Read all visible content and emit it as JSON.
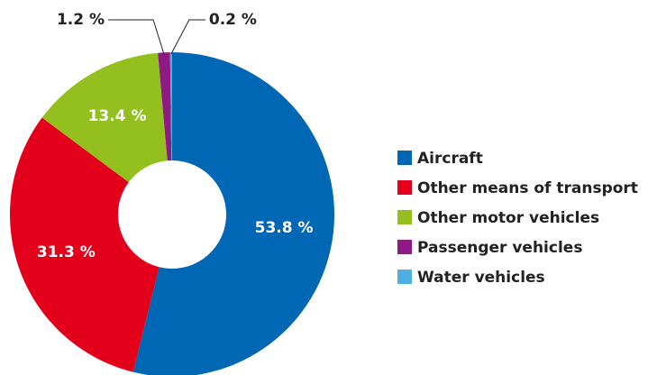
{
  "chart_data": {
    "type": "donut",
    "categories": [
      "Aircraft",
      "Other means of transport",
      "Other motor vehicles",
      "Passenger vehicles",
      "Water vehicles"
    ],
    "values": [
      53.8,
      31.3,
      13.4,
      1.2,
      0.2
    ],
    "value_labels": [
      "53.8 %",
      "31.3 %",
      "13.4 %",
      "1.2 %",
      "0.2 %"
    ],
    "colors": [
      "#0067b4",
      "#e2001a",
      "#93c01f",
      "#8e1b83",
      "#4fb0e0"
    ],
    "legend": "right"
  }
}
